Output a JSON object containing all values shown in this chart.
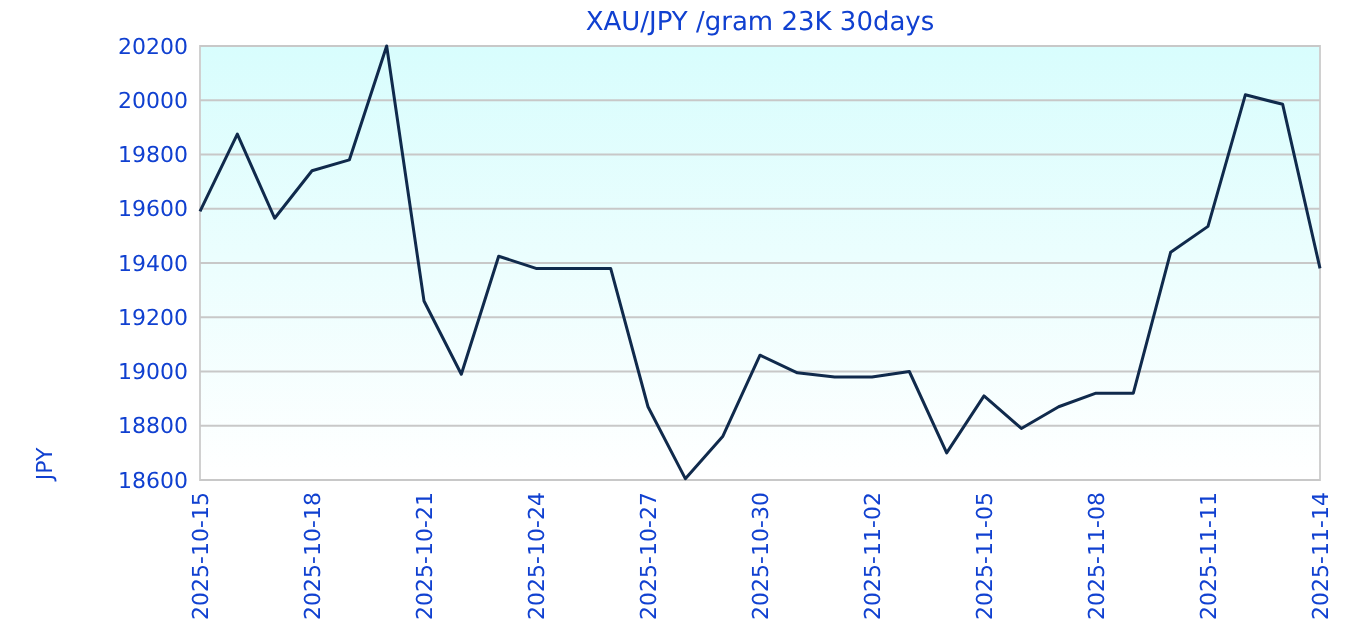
{
  "chart_data": {
    "type": "line",
    "title": "XAU/JPY /gram 23K 30days",
    "ylabel": "JPY",
    "x": [
      "2025-10-15",
      "2025-10-16",
      "2025-10-17",
      "2025-10-18",
      "2025-10-19",
      "2025-10-20",
      "2025-10-21",
      "2025-10-22",
      "2025-10-23",
      "2025-10-24",
      "2025-10-25",
      "2025-10-26",
      "2025-10-27",
      "2025-10-28",
      "2025-10-29",
      "2025-10-30",
      "2025-10-31",
      "2025-11-01",
      "2025-11-02",
      "2025-11-03",
      "2025-11-04",
      "2025-11-05",
      "2025-11-06",
      "2025-11-07",
      "2025-11-08",
      "2025-11-09",
      "2025-11-10",
      "2025-11-11",
      "2025-11-12",
      "2025-11-13",
      "2025-11-14"
    ],
    "series": [
      {
        "color": "#102a4c",
        "values": [
          19590,
          19875,
          19565,
          19740,
          19780,
          20200,
          19260,
          18990,
          19425,
          19380,
          19380,
          19380,
          18870,
          18605,
          18760,
          19060,
          18995,
          18980,
          18980,
          19000,
          18700,
          18910,
          18790,
          18870,
          18920,
          18920,
          19440,
          19535,
          20020,
          19985,
          19380
        ]
      }
    ],
    "xlim": [
      "2025-10-15",
      "2025-11-14"
    ],
    "xticks": [
      "2025-10-15",
      "2025-10-18",
      "2025-10-21",
      "2025-10-24",
      "2025-10-27",
      "2025-10-30",
      "2025-11-02",
      "2025-11-05",
      "2025-11-08",
      "2025-11-11",
      "2025-11-14"
    ],
    "ylim": [
      18600,
      20200
    ],
    "yticks": [
      18600,
      18800,
      19000,
      19200,
      19400,
      19600,
      19800,
      20000,
      20200
    ],
    "grid": "y",
    "marker": "none",
    "line_style": "solid"
  }
}
